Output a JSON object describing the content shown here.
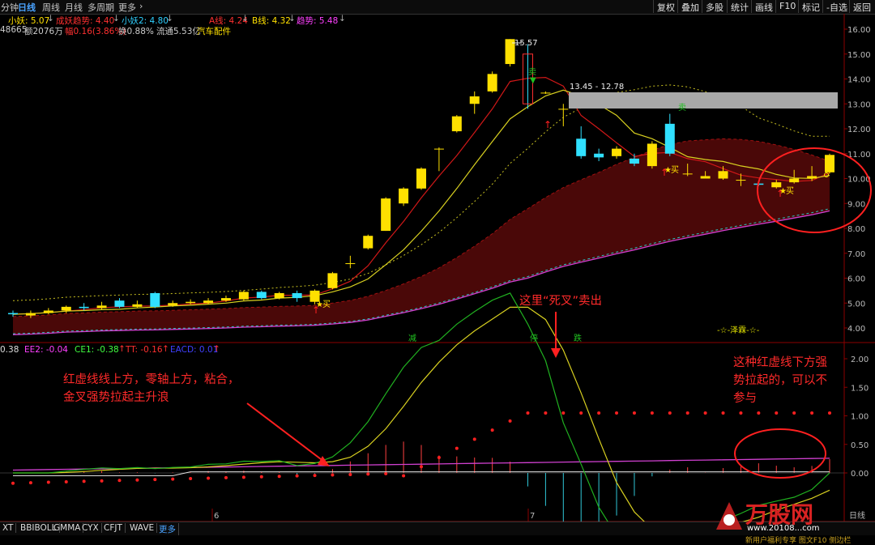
{
  "toolbar": {
    "left_fragment": "分钟",
    "timeframes": [
      "日线",
      "周线",
      "月线",
      "多周期",
      "更多"
    ],
    "active": "日线",
    "right_buttons": [
      "复权",
      "叠加",
      "多股",
      "统计",
      "画线",
      "F10",
      "标记",
      "-自选",
      "返回"
    ]
  },
  "indicator_row1": [
    {
      "text": "小妖: 5.07",
      "color": "#ffe000"
    },
    {
      "text": "成妖趋势: 4.40",
      "color": "#ff3030"
    },
    {
      "text": "小妖2: 4.80",
      "color": "#30d0ff"
    },
    {
      "text": "A线: 4.24",
      "color": "#ff3030"
    },
    {
      "text": "B线: 4.32",
      "color": "#ffe000"
    },
    {
      "text": "趋势: 5.48",
      "color": "#ff40ff"
    }
  ],
  "stock_info": {
    "prefix": "48665",
    "amount": "额2076万",
    "change": "幅0.16(3.86%)",
    "turnover": "换0.88%",
    "float_cap": "流通5.53亿",
    "sector": "汽车配件"
  },
  "indicator_row2": [
    {
      "text": "0.38",
      "color": "#ffffff"
    },
    {
      "text": "EE2: -0.04",
      "color": "#ff40ff"
    },
    {
      "text": "CE1: -0.38",
      "color": "#40ff40"
    },
    {
      "text": "TT: -0.16",
      "color": "#ff3030"
    },
    {
      "text": "EACD: 0.01",
      "color": "#4040ff"
    }
  ],
  "price_axis": [
    "16.00",
    "15.00",
    "14.00",
    "13.00",
    "12.00",
    "11.00",
    "10.00",
    "9.00",
    "8.00",
    "7.00",
    "6.00",
    "5.00",
    "4.00"
  ],
  "osc_axis": [
    "2.00",
    "1.50",
    "1.00",
    "0.50",
    "0.00"
  ],
  "chart_labels": {
    "high_price": "15.57",
    "gap_range": "13.45 - 12.78",
    "buy": "买",
    "sell": "卖",
    "signal_jian": "减",
    "signal_ting": "停",
    "signal_die": "跌",
    "watermark_mid": "-☆-泽霖-☆-",
    "month_6": "6",
    "month_7": "7",
    "axis_right_bottom": "日线"
  },
  "annotations": {
    "dead_cross": "这里“死叉”卖出",
    "left_text": "红虚线线上方，零轴上方，粘合，\n金叉强势拉起主升浪",
    "right_text": "这种红虚线下方强\n势拉起的，可以不\n参与"
  },
  "bottom_tabs": [
    "XT",
    "BBIBOLL",
    "GMMA",
    "CYX",
    "CFJT",
    "WAVE",
    "更多"
  ],
  "watermark": {
    "brand": "万股网",
    "url": "www.20108...com",
    "footer": "新用户福利专享 图文F10 侧边栏"
  },
  "chart_data": {
    "type": "candlestick",
    "price_ylim": [
      3.6,
      16.4
    ],
    "candles": [
      {
        "o": 4.6,
        "c": 4.55,
        "h": 4.7,
        "l": 4.45
      },
      {
        "o": 4.5,
        "c": 4.6,
        "h": 4.7,
        "l": 4.4
      },
      {
        "o": 4.6,
        "c": 4.7,
        "h": 4.8,
        "l": 4.55
      },
      {
        "o": 4.7,
        "c": 4.85,
        "h": 4.9,
        "l": 4.6
      },
      {
        "o": 4.85,
        "c": 4.8,
        "h": 5.0,
        "l": 4.7
      },
      {
        "o": 4.8,
        "c": 4.9,
        "h": 5.05,
        "l": 4.75
      },
      {
        "o": 5.1,
        "c": 4.85,
        "h": 5.2,
        "l": 4.8
      },
      {
        "o": 4.85,
        "c": 4.95,
        "h": 5.1,
        "l": 4.8
      },
      {
        "o": 5.4,
        "c": 4.85,
        "h": 5.45,
        "l": 4.8
      },
      {
        "o": 4.9,
        "c": 5.0,
        "h": 5.1,
        "l": 4.85
      },
      {
        "o": 5.0,
        "c": 5.05,
        "h": 5.15,
        "l": 4.95
      },
      {
        "o": 5.0,
        "c": 5.1,
        "h": 5.2,
        "l": 4.95
      },
      {
        "o": 5.1,
        "c": 5.2,
        "h": 5.3,
        "l": 5.05
      },
      {
        "o": 5.15,
        "c": 5.45,
        "h": 5.5,
        "l": 5.1
      },
      {
        "o": 5.45,
        "c": 5.2,
        "h": 5.5,
        "l": 5.15
      },
      {
        "o": 5.2,
        "c": 5.4,
        "h": 5.45,
        "l": 5.15
      },
      {
        "o": 5.4,
        "c": 5.2,
        "h": 5.5,
        "l": 5.05
      },
      {
        "o": 5.05,
        "c": 5.5,
        "h": 5.55,
        "l": 4.95
      },
      {
        "o": 5.6,
        "c": 6.2,
        "h": 6.25,
        "l": 5.55
      },
      {
        "o": 6.6,
        "c": 6.6,
        "h": 6.9,
        "l": 6.4
      },
      {
        "o": 7.2,
        "c": 7.7,
        "h": 7.75,
        "l": 7.15
      },
      {
        "o": 7.9,
        "c": 9.2,
        "h": 9.25,
        "l": 7.9
      },
      {
        "o": 9.0,
        "c": 9.6,
        "h": 9.65,
        "l": 8.9
      },
      {
        "o": 9.6,
        "c": 10.4,
        "h": 10.45,
        "l": 9.55
      },
      {
        "o": 11.2,
        "c": 11.2,
        "h": 11.25,
        "l": 10.3
      },
      {
        "o": 11.9,
        "c": 12.5,
        "h": 12.55,
        "l": 11.85
      },
      {
        "o": 13.0,
        "c": 13.3,
        "h": 13.5,
        "l": 12.6
      },
      {
        "o": 13.5,
        "c": 14.2,
        "h": 14.3,
        "l": 13.45
      },
      {
        "o": 14.6,
        "c": 15.6,
        "h": 15.6,
        "l": 14.5
      },
      {
        "o": 15.0,
        "c": 13.0,
        "h": 15.4,
        "l": 12.8
      },
      {
        "o": 13.45,
        "c": 13.45,
        "h": 13.5,
        "l": 13.4
      },
      {
        "o": 12.8,
        "c": 12.8,
        "h": 13.0,
        "l": 12.1
      },
      {
        "o": 11.6,
        "c": 10.9,
        "h": 12.1,
        "l": 10.8
      },
      {
        "o": 11.0,
        "c": 10.85,
        "h": 11.2,
        "l": 10.7
      },
      {
        "o": 10.9,
        "c": 11.2,
        "h": 11.3,
        "l": 10.8
      },
      {
        "o": 10.8,
        "c": 10.6,
        "h": 11.0,
        "l": 10.5
      },
      {
        "o": 10.5,
        "c": 11.4,
        "h": 11.5,
        "l": 10.4
      },
      {
        "o": 12.2,
        "c": 11.0,
        "h": 12.6,
        "l": 10.9
      },
      {
        "o": 10.2,
        "c": 10.2,
        "h": 10.6,
        "l": 10.1
      },
      {
        "o": 10.0,
        "c": 10.1,
        "h": 10.3,
        "l": 10.0
      },
      {
        "o": 10.0,
        "c": 10.3,
        "h": 10.5,
        "l": 9.95
      },
      {
        "o": 9.95,
        "c": 9.95,
        "h": 10.2,
        "l": 9.7
      },
      {
        "o": 9.8,
        "c": 9.75,
        "h": 9.85,
        "l": 9.7
      },
      {
        "o": 9.65,
        "c": 9.85,
        "h": 9.95,
        "l": 9.6
      },
      {
        "o": 9.85,
        "c": 10.0,
        "h": 10.35,
        "l": 9.8
      },
      {
        "o": 10.0,
        "c": 10.1,
        "h": 10.5,
        "l": 9.9
      },
      {
        "o": 10.25,
        "c": 10.95,
        "h": 11.0,
        "l": 10.2
      }
    ]
  }
}
